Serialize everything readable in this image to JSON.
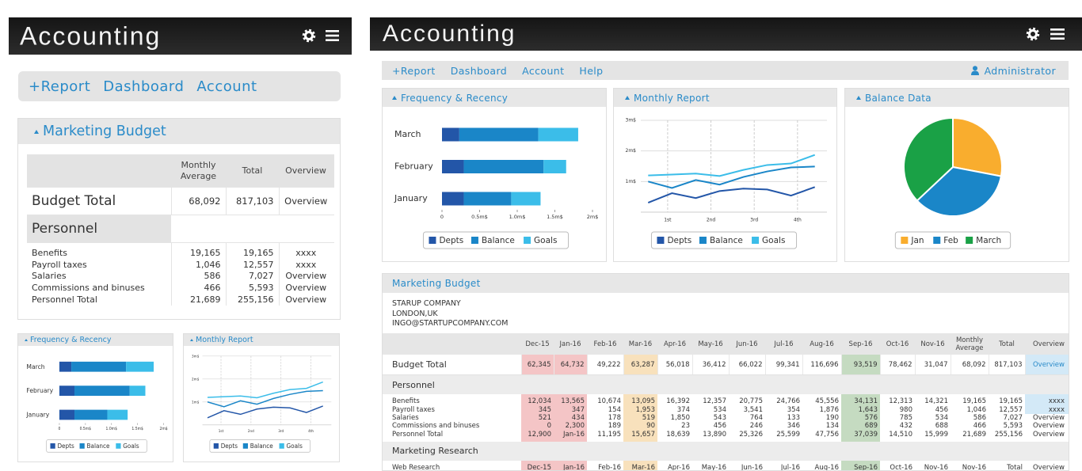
{
  "left": {
    "header": {
      "title": "Accounting"
    },
    "nav": [
      "+Report",
      "Dashboard",
      "Account"
    ],
    "budget": {
      "title": "Marketing Budget",
      "table": {
        "columns": [
          "Monthly Average",
          "Total",
          "Overview"
        ],
        "rows": [
          {
            "label": "Budget Total",
            "cells": [
              "68,092",
              "817,103",
              "Overview"
            ]
          },
          {
            "label": "Personnel"
          },
          {
            "label": "Benefits",
            "cells": [
              "19,165",
              "19,165",
              "xxxx"
            ]
          },
          {
            "label": "Payroll taxes",
            "cells": [
              "1,046",
              "12,557",
              "xxxx"
            ]
          },
          {
            "label": "Salaries",
            "cells": [
              "586",
              "7,027",
              "Overview"
            ]
          },
          {
            "label": "Commissions and binuses",
            "cells": [
              "466",
              "5,593",
              "Overview"
            ]
          },
          {
            "label": "Personnel Total",
            "cells": [
              "21,689",
              "255,156",
              "Overview"
            ]
          }
        ]
      }
    }
  },
  "right": {
    "header": {
      "title": "Accounting"
    },
    "nav": [
      "+Report",
      "Dashboard",
      "Account",
      "Help"
    ],
    "user": "Administrator",
    "budget": {
      "title": "Marketing Budget",
      "company": [
        "STARUP COMPANY",
        "LONDON,UK",
        "INGO@STARTUPCOMPANY.COM"
      ],
      "table": {
        "columns": [
          "Dec-15",
          "Jan-16",
          "Feb-16",
          "Mar-16",
          "Apr-16",
          "May-16",
          "Jun-16",
          "Jul-16",
          "Aug-16",
          "Sep-16",
          "Oct-16",
          "Nov-16",
          "Monthly Average",
          "Total",
          "Overview"
        ],
        "rows": [
          {
            "label": "Budget Total",
            "cells": [
              "62,345",
              "64,732",
              "49,222",
              "63,287",
              "56,018",
              "36,412",
              "66,022",
              "99,341",
              "116,696",
              "93,519",
              "78,462",
              "31,047",
              "68,092",
              "817,103",
              "Overview"
            ]
          },
          {
            "label": "Personnel"
          },
          {
            "label": "Benefits",
            "cells": [
              "12,034",
              "13,565",
              "10,674",
              "13,095",
              "16,392",
              "12,357",
              "20,775",
              "24,766",
              "45,556",
              "34,131",
              "12,313",
              "14,321",
              "19,165",
              "19,165",
              "xxxx"
            ]
          },
          {
            "label": "Payroll taxes",
            "cells": [
              "345",
              "347",
              "154",
              "1,953",
              "374",
              "534",
              "3,541",
              "354",
              "1,876",
              "1,643",
              "980",
              "456",
              "1,046",
              "12,557",
              "xxxx"
            ]
          },
          {
            "label": "Salaries",
            "cells": [
              "521",
              "434",
              "178",
              "519",
              "1,850",
              "543",
              "764",
              "133",
              "190",
              "576",
              "785",
              "534",
              "586",
              "7,027",
              "Overview"
            ]
          },
          {
            "label": "Commissions and binuses",
            "cells": [
              "0",
              "2,300",
              "189",
              "90",
              "23",
              "456",
              "246",
              "346",
              "134",
              "689",
              "432",
              "688",
              "466",
              "5,593",
              "Overview"
            ]
          },
          {
            "label": "Personnel Total",
            "cells": [
              "12,900",
              "Jan-16",
              "11,195",
              "15,657",
              "18,639",
              "13,890",
              "25,326",
              "25,599",
              "47,756",
              "37,039",
              "14,510",
              "15,999",
              "21,689",
              "255,156",
              "Overview"
            ]
          },
          {
            "label": "Marketing Research"
          },
          {
            "label": "Web Research",
            "cells": [
              "Dec-15",
              "Jan-16",
              "Feb-16",
              "Mar-16",
              "Apr-16",
              "May-16",
              "Jun-16",
              "Jul-16",
              "Aug-16",
              "Sep-16",
              "Oct-16",
              "Nov-16",
              "Nov-16",
              "Total",
              "Overview"
            ]
          }
        ]
      }
    }
  },
  "charts": {
    "frequency": {
      "type": "bar",
      "orientation": "horizontal",
      "stacked": true,
      "title": "Frequency & Recency",
      "categories": [
        "March",
        "February",
        "January"
      ],
      "series": [
        {
          "name": "Depts",
          "color": "#2356a8",
          "values": [
            0.23,
            0.29,
            0.29
          ]
        },
        {
          "name": "Balance",
          "color": "#1a86c8",
          "values": [
            1.05,
            1.06,
            0.63
          ]
        },
        {
          "name": "Goals",
          "color": "#3bbde9",
          "values": [
            0.53,
            0.3,
            0.39
          ]
        }
      ],
      "xlim": [
        0,
        2
      ],
      "xticks": [
        0,
        {
          "value": 0.5,
          "label": "0.5m$"
        },
        {
          "value": 1,
          "label": "1.0m$"
        },
        {
          "value": 1.5,
          "label": "1.5m$"
        },
        {
          "value": 2,
          "label": "2m$"
        }
      ]
    },
    "monthly": {
      "type": "line",
      "title": "Monthly Report",
      "x": [
        0.55,
        1.1,
        1.65,
        2.2,
        2.75,
        3.3,
        3.85,
        4.4
      ],
      "series": [
        {
          "name": "Depts",
          "color": "#2356a8",
          "values": [
            0.31,
            0.62,
            0.46,
            0.69,
            0.77,
            0.74,
            0.54,
            0.82
          ]
        },
        {
          "name": "Balance",
          "color": "#1a86c8",
          "values": [
            1.0,
            0.79,
            1.05,
            0.9,
            1.15,
            1.33,
            1.46,
            1.49
          ]
        },
        {
          "name": "Goals",
          "color": "#3bbde9",
          "values": [
            1.2,
            1.23,
            1.26,
            1.18,
            1.38,
            1.54,
            1.59,
            1.87
          ]
        }
      ],
      "xlim": [
        0.38,
        4.68
      ],
      "xticks": [
        {
          "value": 1,
          "label": "1st"
        },
        {
          "value": 2,
          "label": "2nd"
        },
        {
          "value": 3,
          "label": "3rd"
        },
        {
          "value": 4,
          "label": "4th"
        }
      ],
      "ylim": [
        0,
        3
      ],
      "yticks": [
        {
          "value": 1,
          "label": "1m$"
        },
        {
          "value": 2,
          "label": "2m$"
        },
        {
          "value": 3,
          "label": "3m$"
        }
      ],
      "grid": true
    },
    "balance": {
      "type": "pie",
      "title": "Balance Data",
      "categories": [
        "Jan",
        "Feb",
        "March"
      ],
      "values": [
        28,
        35,
        37
      ],
      "colors": [
        "#f9ad2e",
        "#1a86c8",
        "#1aa146"
      ]
    }
  }
}
